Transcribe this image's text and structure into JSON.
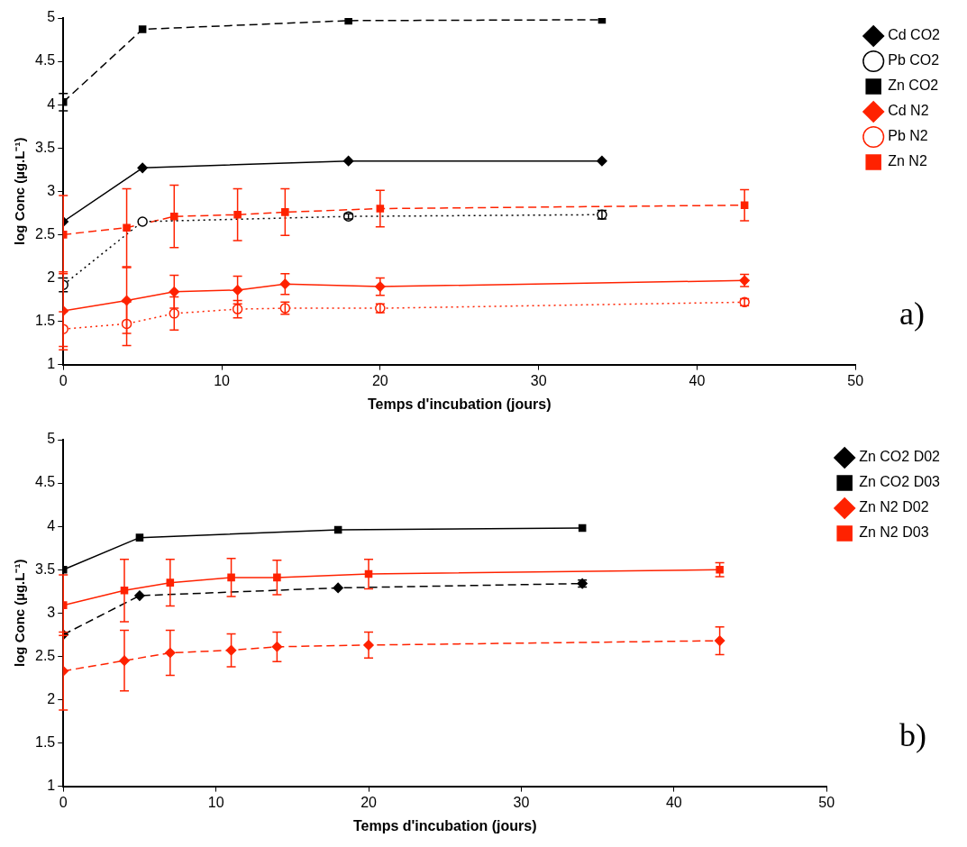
{
  "chart_data": [
    {
      "type": "line",
      "xlabel": "Temps d'incubation (jours)",
      "ylabel": "log Conc (µg.L⁻¹)",
      "xlim": [
        0,
        50
      ],
      "xticks": [
        0,
        10,
        20,
        30,
        40,
        50
      ],
      "ylim": [
        1,
        5
      ],
      "yticks": [
        1,
        1.5,
        2,
        2.5,
        3,
        3.5,
        4,
        4.5,
        5
      ],
      "grid": false,
      "legend": "right",
      "annotations": [
        "a)"
      ],
      "series": [
        {
          "name": "Cd CO2",
          "color": "#000000",
          "marker": "diamond",
          "line_style": "solid",
          "x": [
            0,
            5,
            18,
            34
          ],
          "values": [
            2.65,
            3.27,
            3.35,
            3.35
          ]
        },
        {
          "name": "Pb CO2",
          "color": "#000000",
          "marker": "circle",
          "line_style": "dotted",
          "x": [
            0,
            5,
            18,
            34
          ],
          "values": [
            1.92,
            2.65,
            2.71,
            2.73
          ],
          "errors": [
            0.08,
            null,
            0.03,
            0.05
          ]
        },
        {
          "name": "Zn CO2",
          "color": "#000000",
          "marker": "square",
          "line_style": "dashed",
          "x": [
            0,
            5,
            18,
            34
          ],
          "values": [
            4.03,
            4.87,
            4.97,
            4.98
          ],
          "errors": [
            0.1,
            null,
            null,
            null
          ]
        },
        {
          "name": "Cd N2",
          "color": "#ff2200",
          "marker": "diamond",
          "line_style": "solid",
          "x": [
            0,
            4,
            7,
            11,
            14,
            20,
            43
          ],
          "values": [
            1.62,
            1.74,
            1.84,
            1.86,
            1.93,
            1.9,
            1.97
          ],
          "errors": [
            0.45,
            0.38,
            0.19,
            0.16,
            0.12,
            0.1,
            0.07
          ]
        },
        {
          "name": "Pb N2",
          "color": "#ff2200",
          "marker": "circle",
          "line_style": "dotted",
          "x": [
            0,
            4,
            7,
            11,
            14,
            20,
            43
          ],
          "values": [
            1.41,
            1.47,
            1.59,
            1.64,
            1.65,
            1.65,
            1.72
          ],
          "errors": [
            0.2,
            0.25,
            0.19,
            0.1,
            0.07,
            0.05,
            0.04
          ]
        },
        {
          "name": "Zn N2",
          "color": "#ff2200",
          "marker": "square",
          "line_style": "dashed",
          "x": [
            0,
            4,
            7,
            11,
            14,
            20,
            43
          ],
          "values": [
            2.5,
            2.58,
            2.71,
            2.73,
            2.76,
            2.8,
            2.84
          ],
          "errors": [
            0.45,
            0.45,
            0.36,
            0.3,
            0.27,
            0.21,
            0.18
          ]
        }
      ]
    },
    {
      "type": "line",
      "xlabel": "Temps d'incubation (jours)",
      "ylabel": "log Conc (µg.L⁻¹)",
      "xlim": [
        0,
        50
      ],
      "xticks": [
        0,
        10,
        20,
        30,
        40,
        50
      ],
      "ylim": [
        1,
        5
      ],
      "yticks": [
        1,
        1.5,
        2,
        2.5,
        3,
        3.5,
        4,
        4.5,
        5
      ],
      "grid": false,
      "legend": "right",
      "annotations": [
        "b)"
      ],
      "series": [
        {
          "name": "Zn CO2 D02",
          "color": "#000000",
          "marker": "diamond",
          "line_style": "dashed",
          "x": [
            0,
            5,
            18,
            34
          ],
          "values": [
            2.75,
            3.2,
            3.29,
            3.34
          ],
          "errors": [
            null,
            null,
            null,
            0.04
          ]
        },
        {
          "name": "Zn CO2 D03",
          "color": "#000000",
          "marker": "square",
          "line_style": "solid",
          "x": [
            0,
            5,
            18,
            34
          ],
          "values": [
            3.5,
            3.87,
            3.96,
            3.98
          ]
        },
        {
          "name": "Zn N2 D02",
          "color": "#ff2200",
          "marker": "diamond",
          "line_style": "dashed",
          "x": [
            0,
            4,
            7,
            11,
            14,
            20,
            43
          ],
          "values": [
            2.33,
            2.45,
            2.54,
            2.57,
            2.61,
            2.63,
            2.68
          ],
          "errors": [
            0.45,
            0.35,
            0.26,
            0.19,
            0.17,
            0.15,
            0.16
          ]
        },
        {
          "name": "Zn N2 D03",
          "color": "#ff2200",
          "marker": "square",
          "line_style": "solid",
          "x": [
            0,
            4,
            7,
            11,
            14,
            20,
            43
          ],
          "values": [
            3.09,
            3.26,
            3.35,
            3.41,
            3.41,
            3.45,
            3.5
          ],
          "errors": [
            0.35,
            0.36,
            0.27,
            0.22,
            0.2,
            0.17,
            0.08
          ]
        }
      ]
    }
  ]
}
